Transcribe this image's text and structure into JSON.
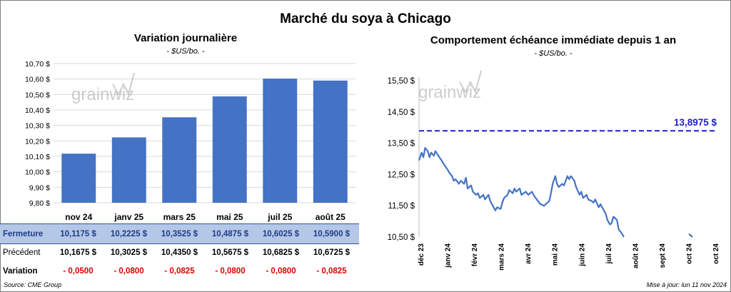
{
  "title": "Marché du soya à Chicago",
  "left": {
    "title": "Variation journalière",
    "subtitle": "- $US/bo. -",
    "watermark": "grainwiz"
  },
  "right": {
    "title": "Comportement échéance immédiate depuis 1 an",
    "subtitle": "- $US/bo. -",
    "watermark": "grainwiz"
  },
  "table": {
    "rows": [
      {
        "label": "Fermeture",
        "values": [
          "10,1175  $",
          "10,2225  $",
          "10,3525  $",
          "10,4875  $",
          "10,6025  $",
          "10,5900  $"
        ]
      },
      {
        "label": "Précédent",
        "values": [
          "10,1675  $",
          "10,3025  $",
          "10,4350  $",
          "10,5675  $",
          "10,6825  $",
          "10,6725  $"
        ]
      },
      {
        "label": "Variation",
        "values": [
          "- 0,0500",
          "- 0,0800",
          "- 0,0825",
          "- 0,0800",
          "- 0,0800",
          "- 0,0825"
        ]
      }
    ]
  },
  "footer": {
    "source": "Source: CME Group",
    "update": "Mise à jour: lun 11 nov 2024"
  },
  "colors": {
    "bar": "#4472c4",
    "line": "#4472c4",
    "reference": "#1f1fbd",
    "negative": "#e00000",
    "fermeture_bg": "#b4c7e7"
  },
  "chart_data": [
    {
      "type": "bar",
      "title": "Variation journalière",
      "subtitle": "- $US/bo. -",
      "categories": [
        "nov 24",
        "janv 25",
        "mars 25",
        "mai 25",
        "juil 25",
        "août 25"
      ],
      "values": [
        10.1175,
        10.2225,
        10.3525,
        10.4875,
        10.6025,
        10.59
      ],
      "ylim": [
        9.8,
        10.7
      ],
      "yticks": [
        9.8,
        9.9,
        10.0,
        10.1,
        10.2,
        10.3,
        10.4,
        10.5,
        10.6,
        10.7
      ],
      "ytick_labels": [
        "9,80 $",
        "9,90 $",
        "10,00 $",
        "10,10 $",
        "10,20 $",
        "10,30 $",
        "10,40 $",
        "10,50 $",
        "10,60 $",
        "10,70 $"
      ],
      "grid": true
    },
    {
      "type": "line",
      "title": "Comportement échéance immédiate depuis 1 an",
      "subtitle": "- $US/bo. -",
      "x_tick_labels": [
        "déc 23",
        "janv 24",
        "févr 24",
        "mars 24",
        "avr 24",
        "mai 24",
        "juin 24",
        "juil 24",
        "août 24",
        "sept 24",
        "oct 24",
        "oct 24"
      ],
      "ylim": [
        10.5,
        15.5
      ],
      "yticks": [
        10.5,
        11.5,
        12.5,
        13.5,
        14.5,
        15.5
      ],
      "ytick_labels": [
        "10,50 $",
        "11,50 $",
        "12,50 $",
        "13,50 $",
        "14,50 $",
        "15,50 $"
      ],
      "reference_line": {
        "value": 13.8975,
        "label": "13,8975 $"
      },
      "series": [
        {
          "segments": [
            [
              [
                "2023-12-01",
                12.95
              ],
              [
                "2023-12-04",
                13.2
              ],
              [
                "2023-12-06",
                13.05
              ],
              [
                "2023-12-08",
                13.35
              ],
              [
                "2023-12-11",
                13.25
              ],
              [
                "2023-12-13",
                13.05
              ],
              [
                "2023-12-15",
                13.2
              ],
              [
                "2023-12-18",
                13.1
              ],
              [
                "2023-12-20",
                13.25
              ],
              [
                "2023-12-22",
                13.15
              ],
              [
                "2023-12-27",
                12.95
              ],
              [
                "2023-12-29",
                12.85
              ],
              [
                "2024-01-03",
                12.65
              ],
              [
                "2024-01-05",
                12.55
              ],
              [
                "2024-01-08",
                12.45
              ],
              [
                "2024-01-10",
                12.3
              ],
              [
                "2024-01-12",
                12.35
              ],
              [
                "2024-01-16",
                12.2
              ],
              [
                "2024-01-18",
                12.3
              ],
              [
                "2024-01-22",
                12.2
              ],
              [
                "2024-01-24",
                12.4
              ],
              [
                "2024-01-26",
                12.05
              ],
              [
                "2024-01-30",
                12.15
              ],
              [
                "2024-02-01",
                11.95
              ],
              [
                "2024-02-05",
                11.85
              ],
              [
                "2024-02-07",
                11.9
              ],
              [
                "2024-02-09",
                11.75
              ],
              [
                "2024-02-13",
                11.85
              ],
              [
                "2024-02-15",
                11.7
              ],
              [
                "2024-02-19",
                11.85
              ],
              [
                "2024-02-21",
                11.65
              ],
              [
                "2024-02-23",
                11.55
              ],
              [
                "2024-02-27",
                11.35
              ],
              [
                "2024-02-29",
                11.45
              ],
              [
                "2024-03-04",
                11.4
              ],
              [
                "2024-03-06",
                11.6
              ],
              [
                "2024-03-08",
                11.75
              ],
              [
                "2024-03-12",
                11.85
              ],
              [
                "2024-03-14",
                12.0
              ],
              [
                "2024-03-18",
                11.9
              ],
              [
                "2024-03-20",
                12.05
              ],
              [
                "2024-03-22",
                11.95
              ],
              [
                "2024-03-26",
                12.05
              ],
              [
                "2024-03-28",
                11.85
              ],
              [
                "2024-04-02",
                11.95
              ],
              [
                "2024-04-05",
                11.85
              ],
              [
                "2024-04-09",
                11.95
              ],
              [
                "2024-04-12",
                11.8
              ],
              [
                "2024-04-16",
                11.65
              ],
              [
                "2024-04-19",
                11.55
              ],
              [
                "2024-04-23",
                11.5
              ],
              [
                "2024-04-25",
                11.55
              ],
              [
                "2024-04-29",
                11.65
              ],
              [
                "2024-05-01",
                11.9
              ],
              [
                "2024-05-03",
                12.2
              ],
              [
                "2024-05-06",
                12.45
              ],
              [
                "2024-05-08",
                12.2
              ],
              [
                "2024-05-10",
                12.1
              ],
              [
                "2024-05-14",
                12.2
              ],
              [
                "2024-05-16",
                12.15
              ],
              [
                "2024-05-20",
                12.45
              ],
              [
                "2024-05-22",
                12.35
              ],
              [
                "2024-05-24",
                12.45
              ],
              [
                "2024-05-28",
                12.3
              ],
              [
                "2024-05-30",
                12.1
              ],
              [
                "2024-06-03",
                11.85
              ],
              [
                "2024-06-05",
                11.95
              ],
              [
                "2024-06-07",
                11.75
              ],
              [
                "2024-06-11",
                11.85
              ],
              [
                "2024-06-13",
                11.7
              ],
              [
                "2024-06-17",
                11.65
              ],
              [
                "2024-06-19",
                11.6
              ],
              [
                "2024-06-21",
                11.7
              ],
              [
                "2024-06-25",
                11.45
              ],
              [
                "2024-06-27",
                11.55
              ],
              [
                "2024-07-01",
                11.35
              ],
              [
                "2024-07-03",
                11.25
              ],
              [
                "2024-07-05",
                11.05
              ],
              [
                "2024-07-08",
                10.9
              ],
              [
                "2024-07-10",
                10.95
              ],
              [
                "2024-07-12",
                11.15
              ],
              [
                "2024-07-16",
                11.05
              ],
              [
                "2024-07-18",
                10.75
              ],
              [
                "2024-07-22",
                10.6
              ],
              [
                "2024-07-24",
                10.5
              ]
            ],
            [
              [
                "2024-10-07",
                10.6
              ],
              [
                "2024-10-09",
                10.55
              ],
              [
                "2024-10-11",
                10.5
              ]
            ]
          ]
        }
      ],
      "grid": false
    }
  ]
}
